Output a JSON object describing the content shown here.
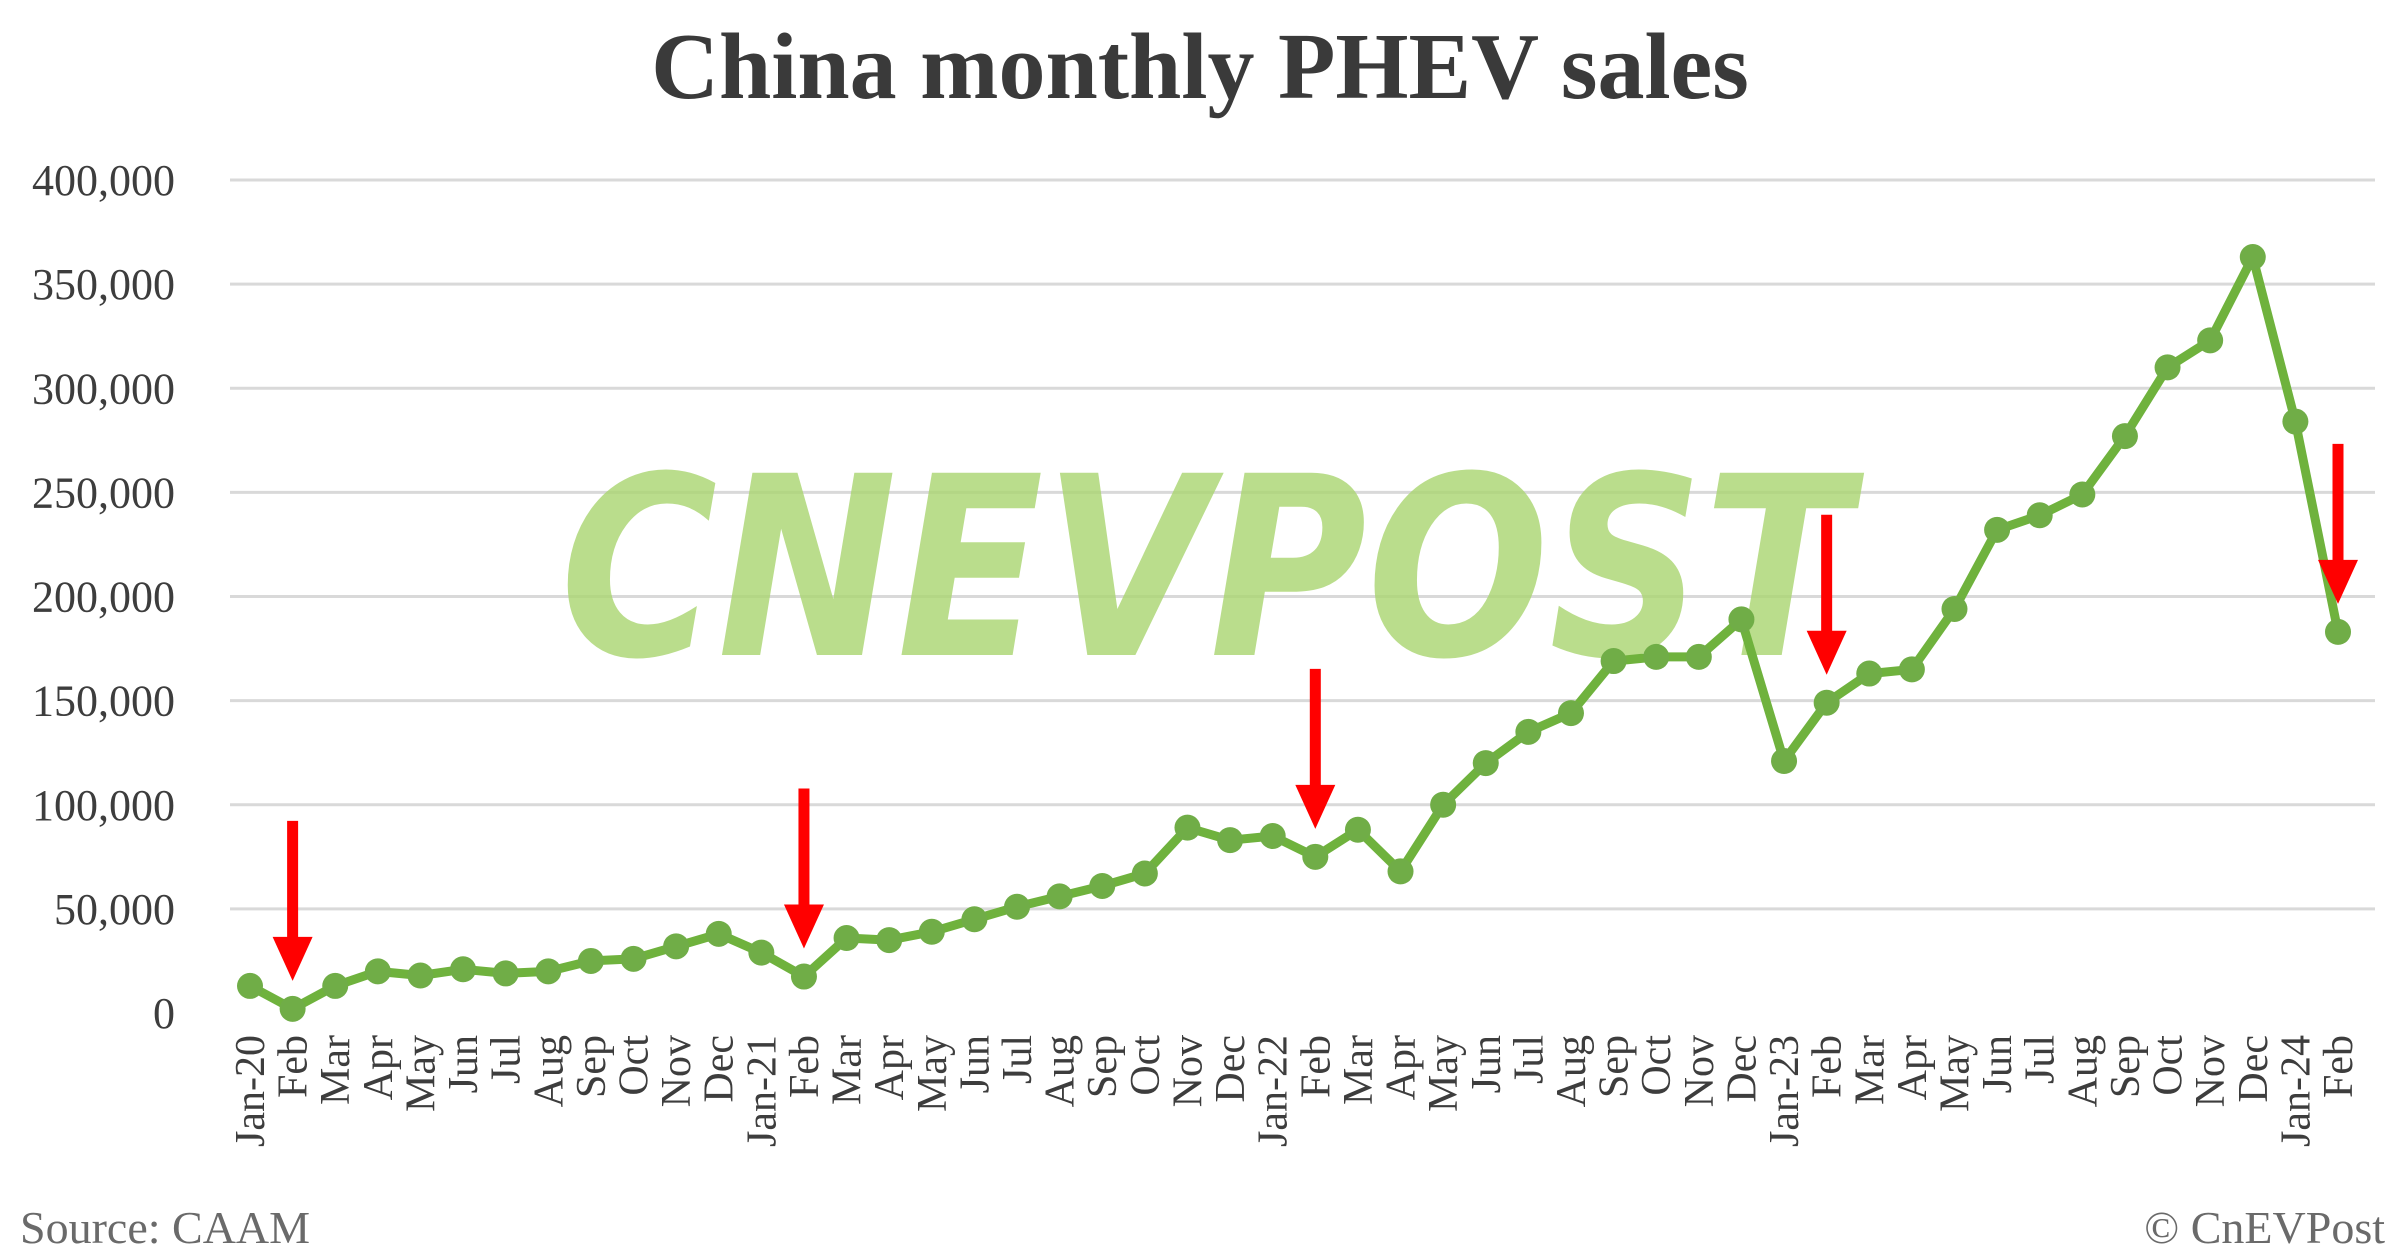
{
  "chart_data": {
    "type": "line",
    "title": "China monthly PHEV sales",
    "source": "Source: CAAM",
    "copyright": "© CnEVPost",
    "watermark": "CNEVPOST",
    "ylim": [
      0,
      400000
    ],
    "yticks": [
      "400,000",
      "350,000",
      "300,000",
      "250,000",
      "200,000",
      "150,000",
      "100,000",
      "50,000",
      "0"
    ],
    "yticks_values": [
      400000,
      350000,
      300000,
      250000,
      200000,
      150000,
      100000,
      50000,
      0
    ],
    "grid": true,
    "line_color": "#6fb23d",
    "marker_color": "#70ad47",
    "arrow_color": "#ff0000",
    "watermark_color": "#a9d46f",
    "categories": [
      "Jan-20",
      "Feb",
      "Mar",
      "Apr",
      "May",
      "Jun",
      "Jul",
      "Aug",
      "Sep",
      "Oct",
      "Nov",
      "Dec",
      "Jan-21",
      "Feb",
      "Mar",
      "Apr",
      "May",
      "Jun",
      "Jul",
      "Aug",
      "Sep",
      "Oct",
      "Nov",
      "Dec",
      "Jan-22",
      "Feb",
      "Mar",
      "Apr",
      "May",
      "Jun",
      "Jul",
      "Aug",
      "Sep",
      "Oct",
      "Nov",
      "Dec",
      "Jan-23",
      "Feb",
      "Mar",
      "Apr",
      "May",
      "Jun",
      "Jul",
      "Aug",
      "Sep",
      "Oct",
      "Nov",
      "Dec",
      "Jan-24",
      "Feb"
    ],
    "series": [
      {
        "values": [
          13000,
          2000,
          13000,
          20000,
          18000,
          21000,
          19000,
          20000,
          25000,
          26000,
          32000,
          38000,
          29000,
          17500,
          36000,
          35000,
          39000,
          45000,
          51000,
          56000,
          61000,
          67000,
          89000,
          83000,
          85000,
          75000,
          88000,
          68000,
          100000,
          120000,
          135000,
          144000,
          169000,
          171000,
          171000,
          189000,
          121000,
          149000,
          163000,
          165000,
          194000,
          232000,
          239000,
          249000,
          277000,
          310000,
          323000,
          363000,
          284000,
          183000
        ]
      }
    ],
    "arrows_at": [
      1,
      13,
      25,
      37,
      49
    ]
  }
}
